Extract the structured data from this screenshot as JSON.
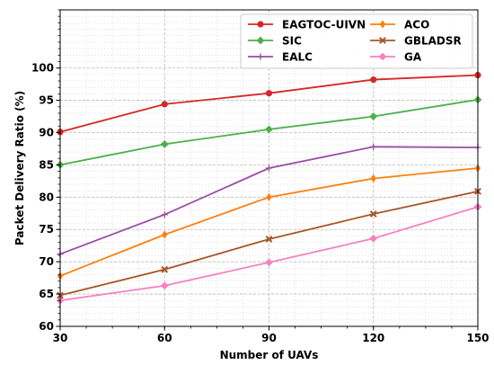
{
  "chart_data": {
    "type": "line",
    "title": "",
    "xlabel": "Number of UAVs",
    "ylabel": "Packet Delivery Ratio (%)",
    "x": [
      30,
      60,
      90,
      120,
      150
    ],
    "xlim": [
      30,
      150
    ],
    "ylim": [
      60,
      109
    ],
    "yticks": [
      60,
      65,
      70,
      75,
      80,
      85,
      90,
      95,
      100
    ],
    "grid": true,
    "legend_position": "top-right",
    "series": [
      {
        "name": "EAGTOC-UIVN",
        "color": "#d62728",
        "marker": "circle",
        "values": [
          90.1,
          94.4,
          96.1,
          98.2,
          98.9
        ]
      },
      {
        "name": "SIC",
        "color": "#4daf4a",
        "marker": "diamond",
        "values": [
          85.0,
          88.2,
          90.5,
          92.5,
          95.1
        ]
      },
      {
        "name": "EALC",
        "color": "#984ea3",
        "marker": "plus",
        "values": [
          71.2,
          77.3,
          84.5,
          87.8,
          87.7
        ]
      },
      {
        "name": "ACO",
        "color": "#ff7f0e",
        "marker": "thin-diamond",
        "values": [
          67.8,
          74.2,
          80.0,
          82.9,
          84.5
        ]
      },
      {
        "name": "GBLADSR",
        "color": "#a65628",
        "marker": "x",
        "values": [
          64.8,
          68.8,
          73.5,
          77.4,
          80.9
        ]
      },
      {
        "name": "GA",
        "color": "#f781bf",
        "marker": "diamond",
        "values": [
          64.0,
          66.3,
          69.9,
          73.6,
          78.5
        ]
      }
    ]
  }
}
